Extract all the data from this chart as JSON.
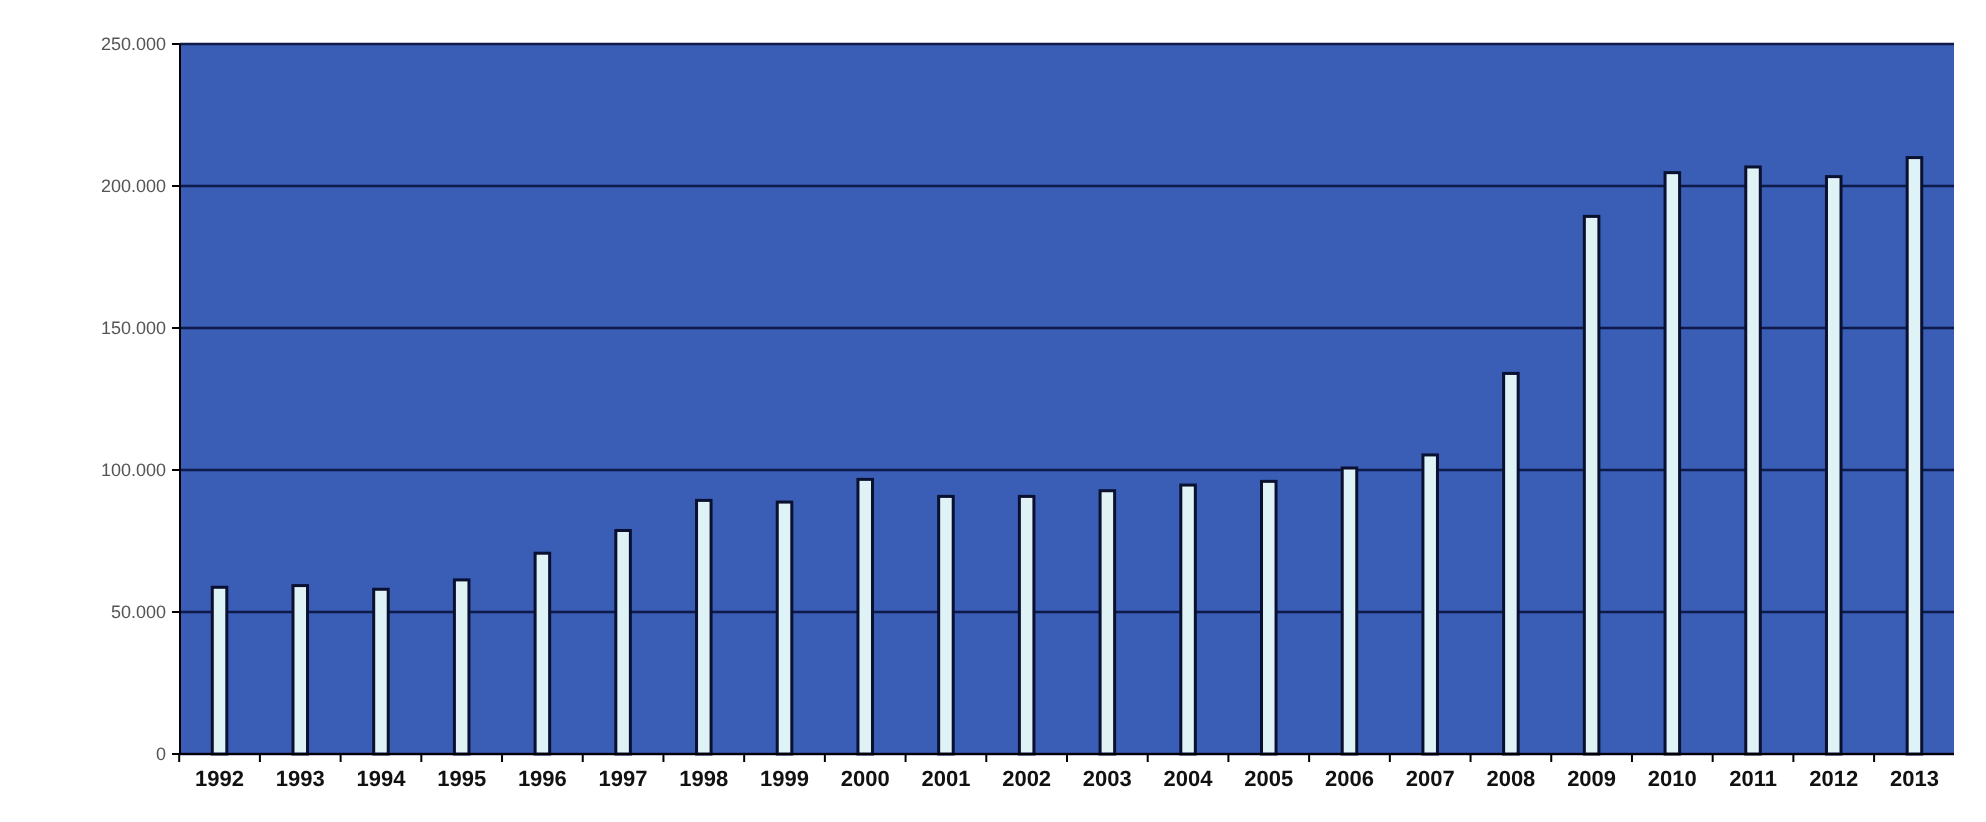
{
  "chart_data": {
    "type": "bar",
    "categories": [
      "1992",
      "1993",
      "1994",
      "1995",
      "1996",
      "1997",
      "1998",
      "1999",
      "2000",
      "2001",
      "2002",
      "2003",
      "2004",
      "2005",
      "2006",
      "2007",
      "2008",
      "2009",
      "2010",
      "2011",
      "2012",
      "2013"
    ],
    "series": [
      {
        "color": "#dff3f7",
        "values": [
          58700,
          59300,
          58000,
          61300,
          70700,
          78700,
          89300,
          88700,
          96700,
          90700,
          90700,
          92700,
          94700,
          96000,
          100700,
          105300,
          134000,
          189300,
          204700,
          206700,
          203300,
          210000
        ]
      }
    ],
    "ylim": [
      0,
      250000
    ],
    "yticks": [
      {
        "value": 0,
        "label": "0"
      },
      {
        "value": 50000,
        "label": "50.000"
      },
      {
        "value": 100000,
        "label": "100.000"
      },
      {
        "value": 150000,
        "label": "150.000"
      },
      {
        "value": 200000,
        "label": "200.000"
      },
      {
        "value": 250000,
        "label": "250.000"
      }
    ],
    "grid": "y"
  }
}
